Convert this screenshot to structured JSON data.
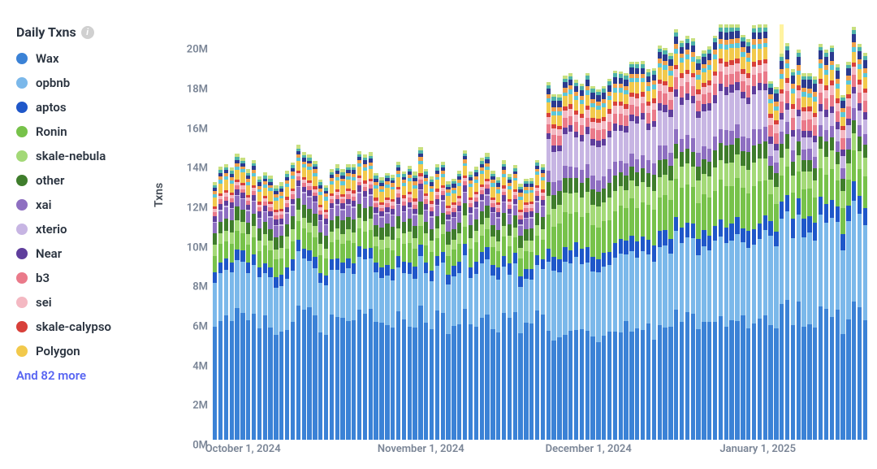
{
  "chart": {
    "type": "stacked-bar",
    "title": "Daily Txns",
    "ylabel": "Txns",
    "background_color": "#ffffff",
    "label_color": "#7a8596",
    "title_color": "#2b3440",
    "more_link_color": "#5865f2",
    "label_fontsize": 13,
    "title_fontsize": 16,
    "ylim": [
      0,
      21000000
    ],
    "yticks": [
      0,
      2000000,
      4000000,
      6000000,
      8000000,
      10000000,
      12000000,
      14000000,
      16000000,
      18000000,
      20000000
    ],
    "ytick_labels": [
      "0M",
      "2M",
      "4M",
      "6M",
      "8M",
      "10M",
      "12M",
      "14M",
      "16M",
      "18M",
      "20M"
    ],
    "xticks": [
      {
        "index": 0,
        "label": "October 1, 2024"
      },
      {
        "index": 31,
        "label": "November 1, 2024"
      },
      {
        "index": 61,
        "label": "December 1, 2024"
      },
      {
        "index": 92,
        "label": "January 1, 2025"
      }
    ],
    "legend": {
      "items": [
        {
          "key": "wax",
          "label": "Wax",
          "color": "#3b82d6"
        },
        {
          "key": "opbnb",
          "label": "opbnb",
          "color": "#7bb8ea"
        },
        {
          "key": "aptos",
          "label": "aptos",
          "color": "#1f57c9"
        },
        {
          "key": "ronin",
          "label": "Ronin",
          "color": "#77c24a"
        },
        {
          "key": "skale_nebula",
          "label": "skale-nebula",
          "color": "#a3d977"
        },
        {
          "key": "other",
          "label": "other",
          "color": "#3f7d2c"
        },
        {
          "key": "xai",
          "label": "xai",
          "color": "#8e6fc1"
        },
        {
          "key": "xterio",
          "label": "xterio",
          "color": "#c7b5e3"
        },
        {
          "key": "near",
          "label": "Near",
          "color": "#5f3e9c"
        },
        {
          "key": "b3",
          "label": "b3",
          "color": "#ea7a8a"
        },
        {
          "key": "sei",
          "label": "sei",
          "color": "#f4b8c2"
        },
        {
          "key": "skale_calypso",
          "label": "skale-calypso",
          "color": "#d8403a"
        },
        {
          "key": "polygon",
          "label": "Polygon",
          "color": "#f2c94c"
        }
      ],
      "more_label": "And 82 more"
    },
    "series_order": [
      "wax",
      "opbnb",
      "aptos",
      "ronin",
      "skale_nebula",
      "other",
      "xai",
      "xterio",
      "near",
      "b3",
      "sei",
      "skale_calypso",
      "polygon",
      "extra_cyan",
      "extra_orange",
      "extra_navy",
      "extra_teal",
      "extra_lime"
    ],
    "series_colors": {
      "wax": "#3b82d6",
      "opbnb": "#7bb8ea",
      "aptos": "#1f57c9",
      "ronin": "#77c24a",
      "skale_nebula": "#a3d977",
      "other": "#3f7d2c",
      "xai": "#8e6fc1",
      "xterio": "#c7b5e3",
      "near": "#5f3e9c",
      "b3": "#ea7a8a",
      "sei": "#f4b8c2",
      "skale_calypso": "#d8403a",
      "polygon": "#f2c94c",
      "extra_cyan": "#5bc7d9",
      "extra_orange": "#f0a04b",
      "extra_navy": "#2b3a8f",
      "extra_teal": "#4fb3a9",
      "extra_lime": "#c8e080"
    },
    "n_days": 118,
    "highlight_day_index": 102,
    "highlight_color": "#fff3a0",
    "data_profile": {
      "base_totals_phase1": [
        13000000,
        14400000
      ],
      "base_totals_phase2_start": 60,
      "base_totals_phase2": [
        16000000,
        21000000
      ],
      "base_totals_phase3_start": 100,
      "base_totals_phase3": [
        16500000,
        20000000
      ],
      "shares_phase1": {
        "wax": 0.44,
        "opbnb": 0.18,
        "aptos": 0.04,
        "ronin": 0.065,
        "skale_nebula": 0.04,
        "other": 0.045,
        "xai": 0.04,
        "xterio": 0.005,
        "near": 0.02,
        "b3": 0.015,
        "sei": 0.012,
        "skale_calypso": 0.01,
        "polygon": 0.035,
        "extra_cyan": 0.012,
        "extra_orange": 0.012,
        "extra_navy": 0.012,
        "extra_teal": 0.01,
        "extra_lime": 0.012
      },
      "shares_phase2": {
        "wax": 0.3,
        "opbnb": 0.2,
        "aptos": 0.04,
        "ronin": 0.095,
        "skale_nebula": 0.055,
        "other": 0.04,
        "xai": 0.035,
        "xterio": 0.09,
        "near": 0.018,
        "b3": 0.028,
        "sei": 0.02,
        "skale_calypso": 0.012,
        "polygon": 0.028,
        "extra_cyan": 0.012,
        "extra_orange": 0.012,
        "extra_navy": 0.017,
        "extra_teal": 0.01,
        "extra_lime": 0.008
      },
      "shares_phase3": {
        "wax": 0.33,
        "opbnb": 0.24,
        "aptos": 0.045,
        "ronin": 0.075,
        "skale_nebula": 0.045,
        "other": 0.035,
        "xai": 0.03,
        "xterio": 0.035,
        "near": 0.018,
        "b3": 0.03,
        "sei": 0.022,
        "skale_calypso": 0.012,
        "polygon": 0.028,
        "extra_cyan": 0.012,
        "extra_orange": 0.013,
        "extra_navy": 0.022,
        "extra_teal": 0.01,
        "extra_lime": 0.008
      },
      "jitter": 0.1
    }
  }
}
